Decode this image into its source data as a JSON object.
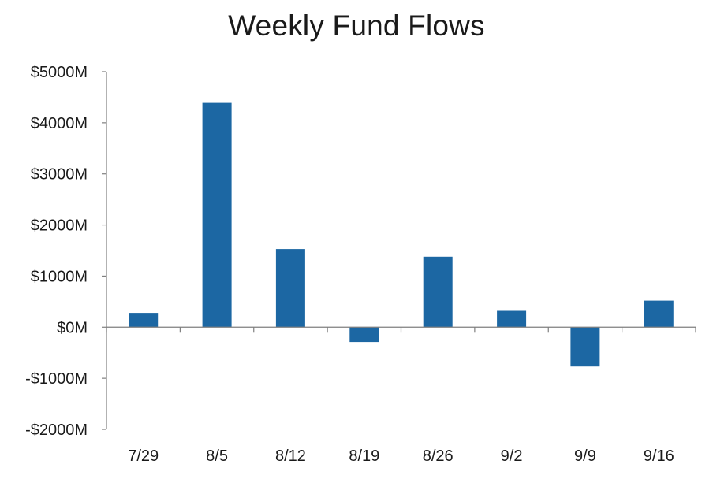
{
  "chart_data": {
    "type": "bar",
    "title": "Weekly Fund Flows",
    "xlabel": "",
    "ylabel": "",
    "categories": [
      "7/29",
      "8/5",
      "8/12",
      "8/19",
      "8/26",
      "9/2",
      "9/9",
      "9/16"
    ],
    "values": [
      280,
      4390,
      1530,
      -290,
      1380,
      320,
      -770,
      520
    ],
    "ylim": [
      -2000,
      5000
    ],
    "yticks": [
      5000,
      4000,
      3000,
      2000,
      1000,
      0,
      -1000,
      -2000
    ],
    "ytick_labels": [
      "$5000M",
      "$4000M",
      "$3000M",
      "$2000M",
      "$1000M",
      "$0M",
      "-$1000M",
      "-$2000M"
    ],
    "bar_color": "#1c67a3",
    "axis_color": "#7f7f7f",
    "grid": false,
    "legend": "none"
  }
}
